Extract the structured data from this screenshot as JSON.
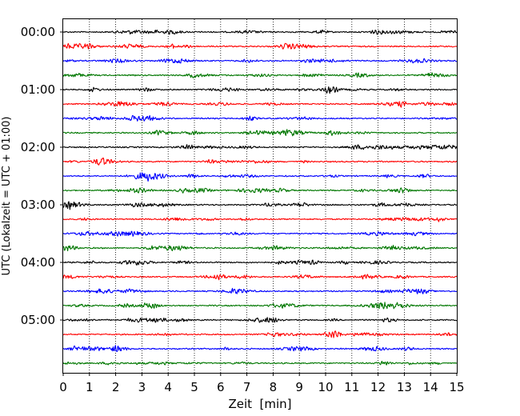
{
  "chart_data": {
    "type": "line",
    "subtype": "helicorder",
    "title": "",
    "xlabel": "Zeit  [min]",
    "ylabel": "UTC (Lokalzeit = UTC + 01:00)",
    "xlim": [
      0,
      15
    ],
    "x_ticks": [
      "0",
      "1",
      "2",
      "3",
      "4",
      "5",
      "6",
      "7",
      "8",
      "9",
      "10",
      "11",
      "12",
      "13",
      "14",
      "15"
    ],
    "y_tick_labels": [
      "00:00",
      "01:00",
      "02:00",
      "03:00",
      "04:00",
      "05:00"
    ],
    "trace_interval_minutes": 15,
    "trace_count": 24,
    "trace_colors": [
      "#000000",
      "#ff0000",
      "#0000ff",
      "#007700"
    ],
    "vertical_grid": "dotted",
    "horizontal_grid": false
  }
}
